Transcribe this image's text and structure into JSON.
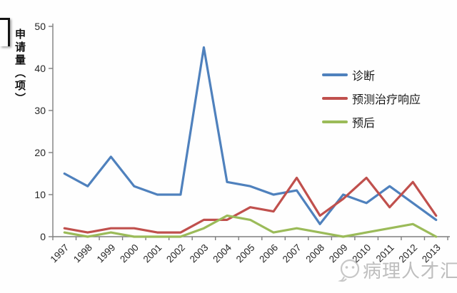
{
  "watermark": {
    "text": "病理人才汇",
    "logo": "face-logo",
    "color": "#a6a6a6"
  },
  "chart_data": {
    "type": "line",
    "title": "",
    "y_axis_title": "申请量（项）",
    "xlabel": "",
    "ylabel": "申请量（项）",
    "x_categories": [
      "1997",
      "1998",
      "1999",
      "2000",
      "2001",
      "2002",
      "2003",
      "2004",
      "2005",
      "2006",
      "2007",
      "2008",
      "2009",
      "2010",
      "2011",
      "2012",
      "2013"
    ],
    "y_ticks": [
      0,
      10,
      20,
      30,
      40,
      50
    ],
    "ylim": [
      0,
      50
    ],
    "grid": false,
    "legend_position": "upper-right",
    "axis_color": "#7f7f7f",
    "tick_label_color": "#262626",
    "series": [
      {
        "name": "诊断",
        "color": "#4f81bd",
        "values": [
          15,
          12,
          19,
          12,
          10,
          10,
          45,
          13,
          12,
          10,
          11,
          3,
          10,
          8,
          12,
          8,
          4
        ]
      },
      {
        "name": "预测治疗响应",
        "color": "#c0504d",
        "values": [
          2,
          1,
          2,
          2,
          1,
          1,
          4,
          4,
          7,
          6,
          14,
          5,
          9,
          14,
          7,
          13,
          5
        ]
      },
      {
        "name": "预后",
        "color": "#9bbb59",
        "values": [
          1,
          0,
          1,
          0,
          0,
          0,
          2,
          5,
          4,
          1,
          2,
          1,
          0,
          1,
          2,
          3,
          0
        ]
      }
    ]
  }
}
